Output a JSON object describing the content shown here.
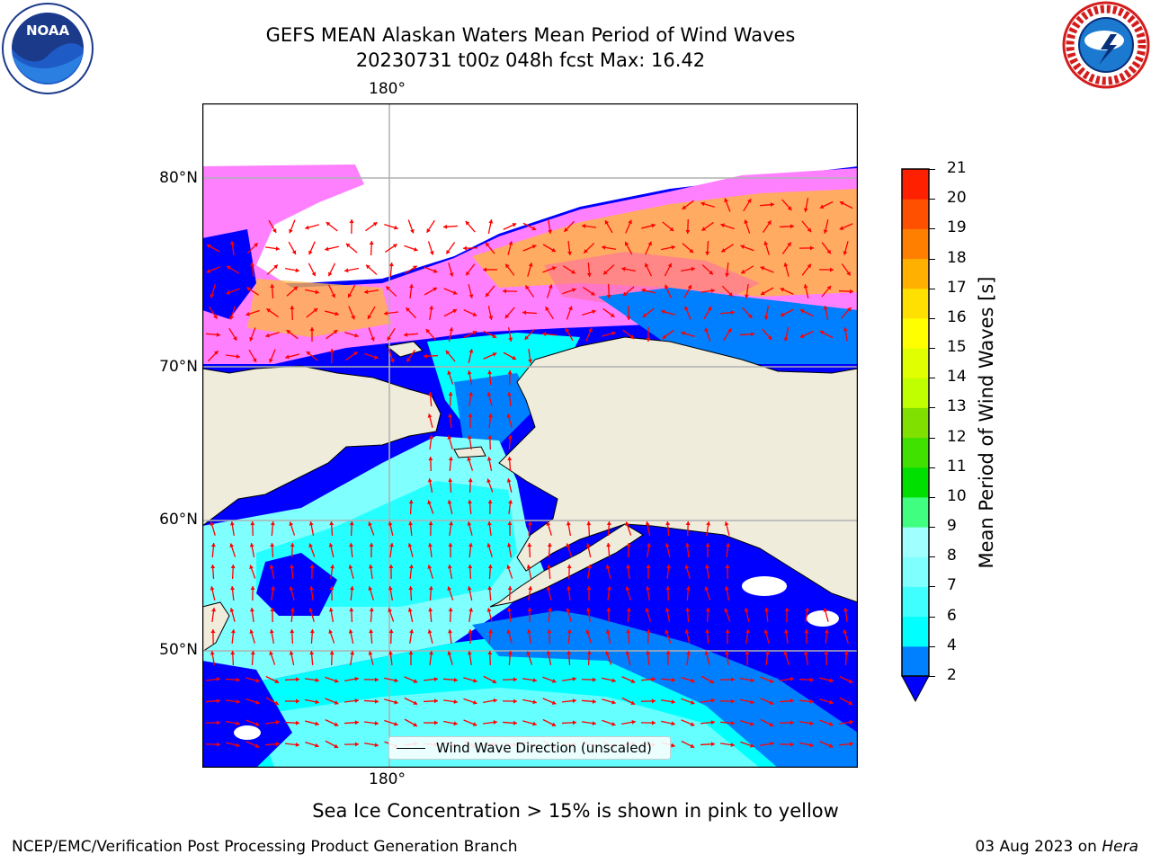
{
  "title_line1": "GEFS MEAN Alaskan Waters Mean Period of Wind Waves",
  "title_line2": "20230731 t00z 048h fcst   Max: 16.42",
  "logos": {
    "noaa": {
      "text": "NOAA",
      "icon": "noaa-logo-icon"
    },
    "nws": {
      "icon": "nws-logo-icon"
    }
  },
  "map": {
    "lon_labels": [
      "180°",
      "180°"
    ],
    "lat_labels": [
      "80°N",
      "70°N",
      "60°N",
      "50°N"
    ],
    "land_color": "#efecdc",
    "ocean_colors": [
      "#0000ff",
      "#0080ff",
      "#00ffff",
      "#80ffff"
    ],
    "ice_colors": [
      "#ff80ff",
      "#ffb347",
      "#ff6fa0"
    ],
    "arrow_color": "#ff0000",
    "legend_label": "Wind Wave Direction (unscaled)"
  },
  "colorbar": {
    "label": "Mean Period of Wind Waves [s]",
    "ticks": [
      "2",
      "4",
      "6",
      "7",
      "8",
      "9",
      "10",
      "11",
      "12",
      "13",
      "14",
      "15",
      "16",
      "17",
      "18",
      "19",
      "20",
      "21"
    ],
    "colors": [
      "#0080ff",
      "#00ffff",
      "#40ffff",
      "#80ffff",
      "#a0ffff",
      "#40ff80",
      "#00e000",
      "#40e000",
      "#80e000",
      "#c0ff00",
      "#e0ff00",
      "#ffff00",
      "#ffe000",
      "#ffb000",
      "#ff8000",
      "#ff5000",
      "#ff2000"
    ],
    "under_color": "#0000ff"
  },
  "note": "Sea Ice Concentration > 15% is shown in pink to yellow",
  "footer_left": "NCEP/EMC/Verification Post Processing Product Generation Branch",
  "footer_date": "03 Aug 2023 on ",
  "footer_machine": "Hera"
}
